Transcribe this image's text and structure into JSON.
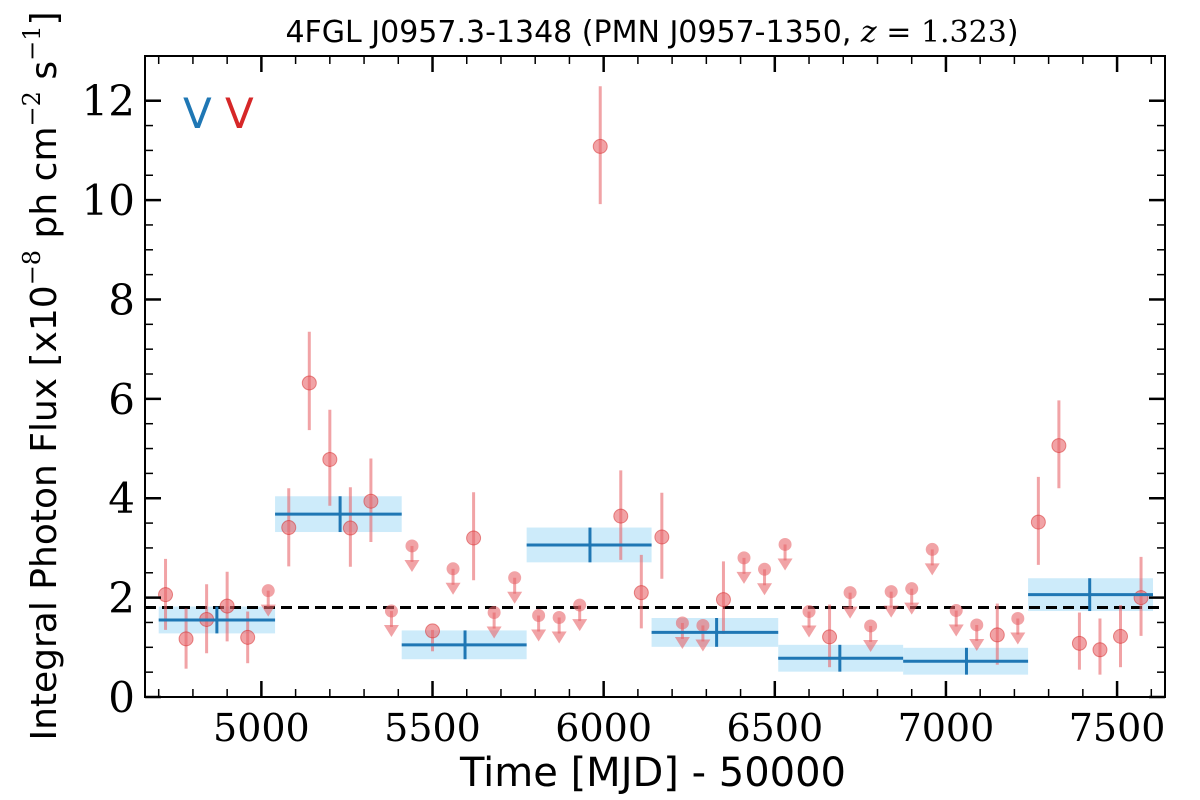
{
  "chart_data": {
    "type": "scatter",
    "title": {
      "prefix": "4FGL J0957.3-1348 (PMN J0957-1350, ",
      "z_symbol": "z",
      "eq": " = ",
      "z_value": "1.323",
      "suffix": ")"
    },
    "xlabel": "Time [MJD] - 50000",
    "ylabel": {
      "pre": "Integral Photon Flux [x10",
      "exp": "−8",
      "mid": " ph cm",
      "exp2": "−2",
      "mid2": " s",
      "exp3": "−1",
      "post": "]"
    },
    "xlim": [
      4660,
      7640
    ],
    "ylim": [
      0,
      12.9
    ],
    "x_ticks": [
      5000,
      5500,
      6000,
      6500,
      7000,
      7500
    ],
    "x_tick_labels": [
      "5000",
      "5500",
      "6000",
      "6500",
      "7000",
      "7500"
    ],
    "y_ticks": [
      0,
      2,
      4,
      6,
      8,
      10,
      12
    ],
    "y_tick_labels": [
      "0",
      "2",
      "4",
      "6",
      "8",
      "10",
      "12"
    ],
    "legend_labels": [
      {
        "text": "V",
        "color": "#1f77b4"
      },
      {
        "text": "V",
        "color": "#d62728"
      }
    ],
    "mean_flux": 1.8,
    "series": [
      {
        "kind": "bayesian_blocks",
        "color": "#1f77b4",
        "band_color": "#cdebfa",
        "blocks": [
          {
            "x0": 4700,
            "x1": 5040,
            "y": 1.55,
            "err": 0.27,
            "xc": 4870
          },
          {
            "x0": 5040,
            "x1": 5410,
            "y": 3.68,
            "err": 0.36,
            "xc": 5230
          },
          {
            "x0": 5410,
            "x1": 5775,
            "y": 1.05,
            "err": 0.29,
            "xc": 5595
          },
          {
            "x0": 5775,
            "x1": 6140,
            "y": 3.06,
            "err": 0.35,
            "xc": 5960
          },
          {
            "x0": 6140,
            "x1": 6510,
            "y": 1.3,
            "err": 0.29,
            "xc": 6330
          },
          {
            "x0": 6510,
            "x1": 6875,
            "y": 0.78,
            "err": 0.27,
            "xc": 6690
          },
          {
            "x0": 6875,
            "x1": 7240,
            "y": 0.72,
            "err": 0.27,
            "xc": 7060
          },
          {
            "x0": 7240,
            "x1": 7605,
            "y": 2.06,
            "err": 0.33,
            "xc": 7420
          }
        ]
      },
      {
        "kind": "detections",
        "color": "#e8666a",
        "points": [
          {
            "x": 4720,
            "y": 2.06,
            "lo": 1.35,
            "hi": 2.78
          },
          {
            "x": 4780,
            "y": 1.17,
            "lo": 0.57,
            "hi": 1.78
          },
          {
            "x": 4840,
            "y": 1.56,
            "lo": 0.88,
            "hi": 2.27
          },
          {
            "x": 4900,
            "y": 1.83,
            "lo": 1.12,
            "hi": 2.52
          },
          {
            "x": 4960,
            "y": 1.2,
            "lo": 0.68,
            "hi": 1.72
          },
          {
            "x": 5080,
            "y": 3.41,
            "lo": 2.63,
            "hi": 4.2
          },
          {
            "x": 5140,
            "y": 6.32,
            "lo": 5.37,
            "hi": 7.35
          },
          {
            "x": 5200,
            "y": 4.78,
            "lo": 3.85,
            "hi": 5.78
          },
          {
            "x": 5260,
            "y": 3.4,
            "lo": 2.62,
            "hi": 4.22
          },
          {
            "x": 5320,
            "y": 3.94,
            "lo": 3.12,
            "hi": 4.8
          },
          {
            "x": 5500,
            "y": 1.33,
            "lo": 0.92,
            "hi": 1.35
          },
          {
            "x": 5620,
            "y": 3.2,
            "lo": 2.35,
            "hi": 4.12
          },
          {
            "x": 5990,
            "y": 11.08,
            "lo": 9.92,
            "hi": 12.29
          },
          {
            "x": 6050,
            "y": 3.64,
            "lo": 2.76,
            "hi": 4.56
          },
          {
            "x": 6110,
            "y": 2.1,
            "lo": 1.38,
            "hi": 2.86
          },
          {
            "x": 6170,
            "y": 3.22,
            "lo": 2.38,
            "hi": 4.11
          },
          {
            "x": 6350,
            "y": 1.96,
            "lo": 1.27,
            "hi": 2.73
          },
          {
            "x": 6660,
            "y": 1.21,
            "lo": 0.6,
            "hi": 1.86
          },
          {
            "x": 7150,
            "y": 1.25,
            "lo": 0.65,
            "hi": 1.88
          },
          {
            "x": 7270,
            "y": 3.52,
            "lo": 2.66,
            "hi": 4.43
          },
          {
            "x": 7330,
            "y": 5.06,
            "lo": 4.2,
            "hi": 5.97
          },
          {
            "x": 7390,
            "y": 1.08,
            "lo": 0.55,
            "hi": 1.7
          },
          {
            "x": 7450,
            "y": 0.95,
            "lo": 0.45,
            "hi": 1.58
          },
          {
            "x": 7510,
            "y": 1.22,
            "lo": 0.6,
            "hi": 1.85
          },
          {
            "x": 7570,
            "y": 2.0,
            "lo": 1.23,
            "hi": 2.82
          }
        ]
      },
      {
        "kind": "upper_limits",
        "color": "#e8666a",
        "points": [
          {
            "x": 5020,
            "y": 2.14
          },
          {
            "x": 5380,
            "y": 1.73
          },
          {
            "x": 5440,
            "y": 3.04
          },
          {
            "x": 5560,
            "y": 2.58
          },
          {
            "x": 5680,
            "y": 1.7
          },
          {
            "x": 5740,
            "y": 2.4
          },
          {
            "x": 5810,
            "y": 1.64
          },
          {
            "x": 5870,
            "y": 1.6
          },
          {
            "x": 5930,
            "y": 1.85
          },
          {
            "x": 6230,
            "y": 1.49
          },
          {
            "x": 6290,
            "y": 1.44
          },
          {
            "x": 6410,
            "y": 2.8
          },
          {
            "x": 6470,
            "y": 2.57
          },
          {
            "x": 6530,
            "y": 3.07
          },
          {
            "x": 6600,
            "y": 1.72
          },
          {
            "x": 6720,
            "y": 2.1
          },
          {
            "x": 6780,
            "y": 1.43
          },
          {
            "x": 6840,
            "y": 2.12
          },
          {
            "x": 6900,
            "y": 2.18
          },
          {
            "x": 6960,
            "y": 2.97
          },
          {
            "x": 7030,
            "y": 1.74
          },
          {
            "x": 7090,
            "y": 1.45
          },
          {
            "x": 7210,
            "y": 1.58
          }
        ]
      }
    ]
  }
}
